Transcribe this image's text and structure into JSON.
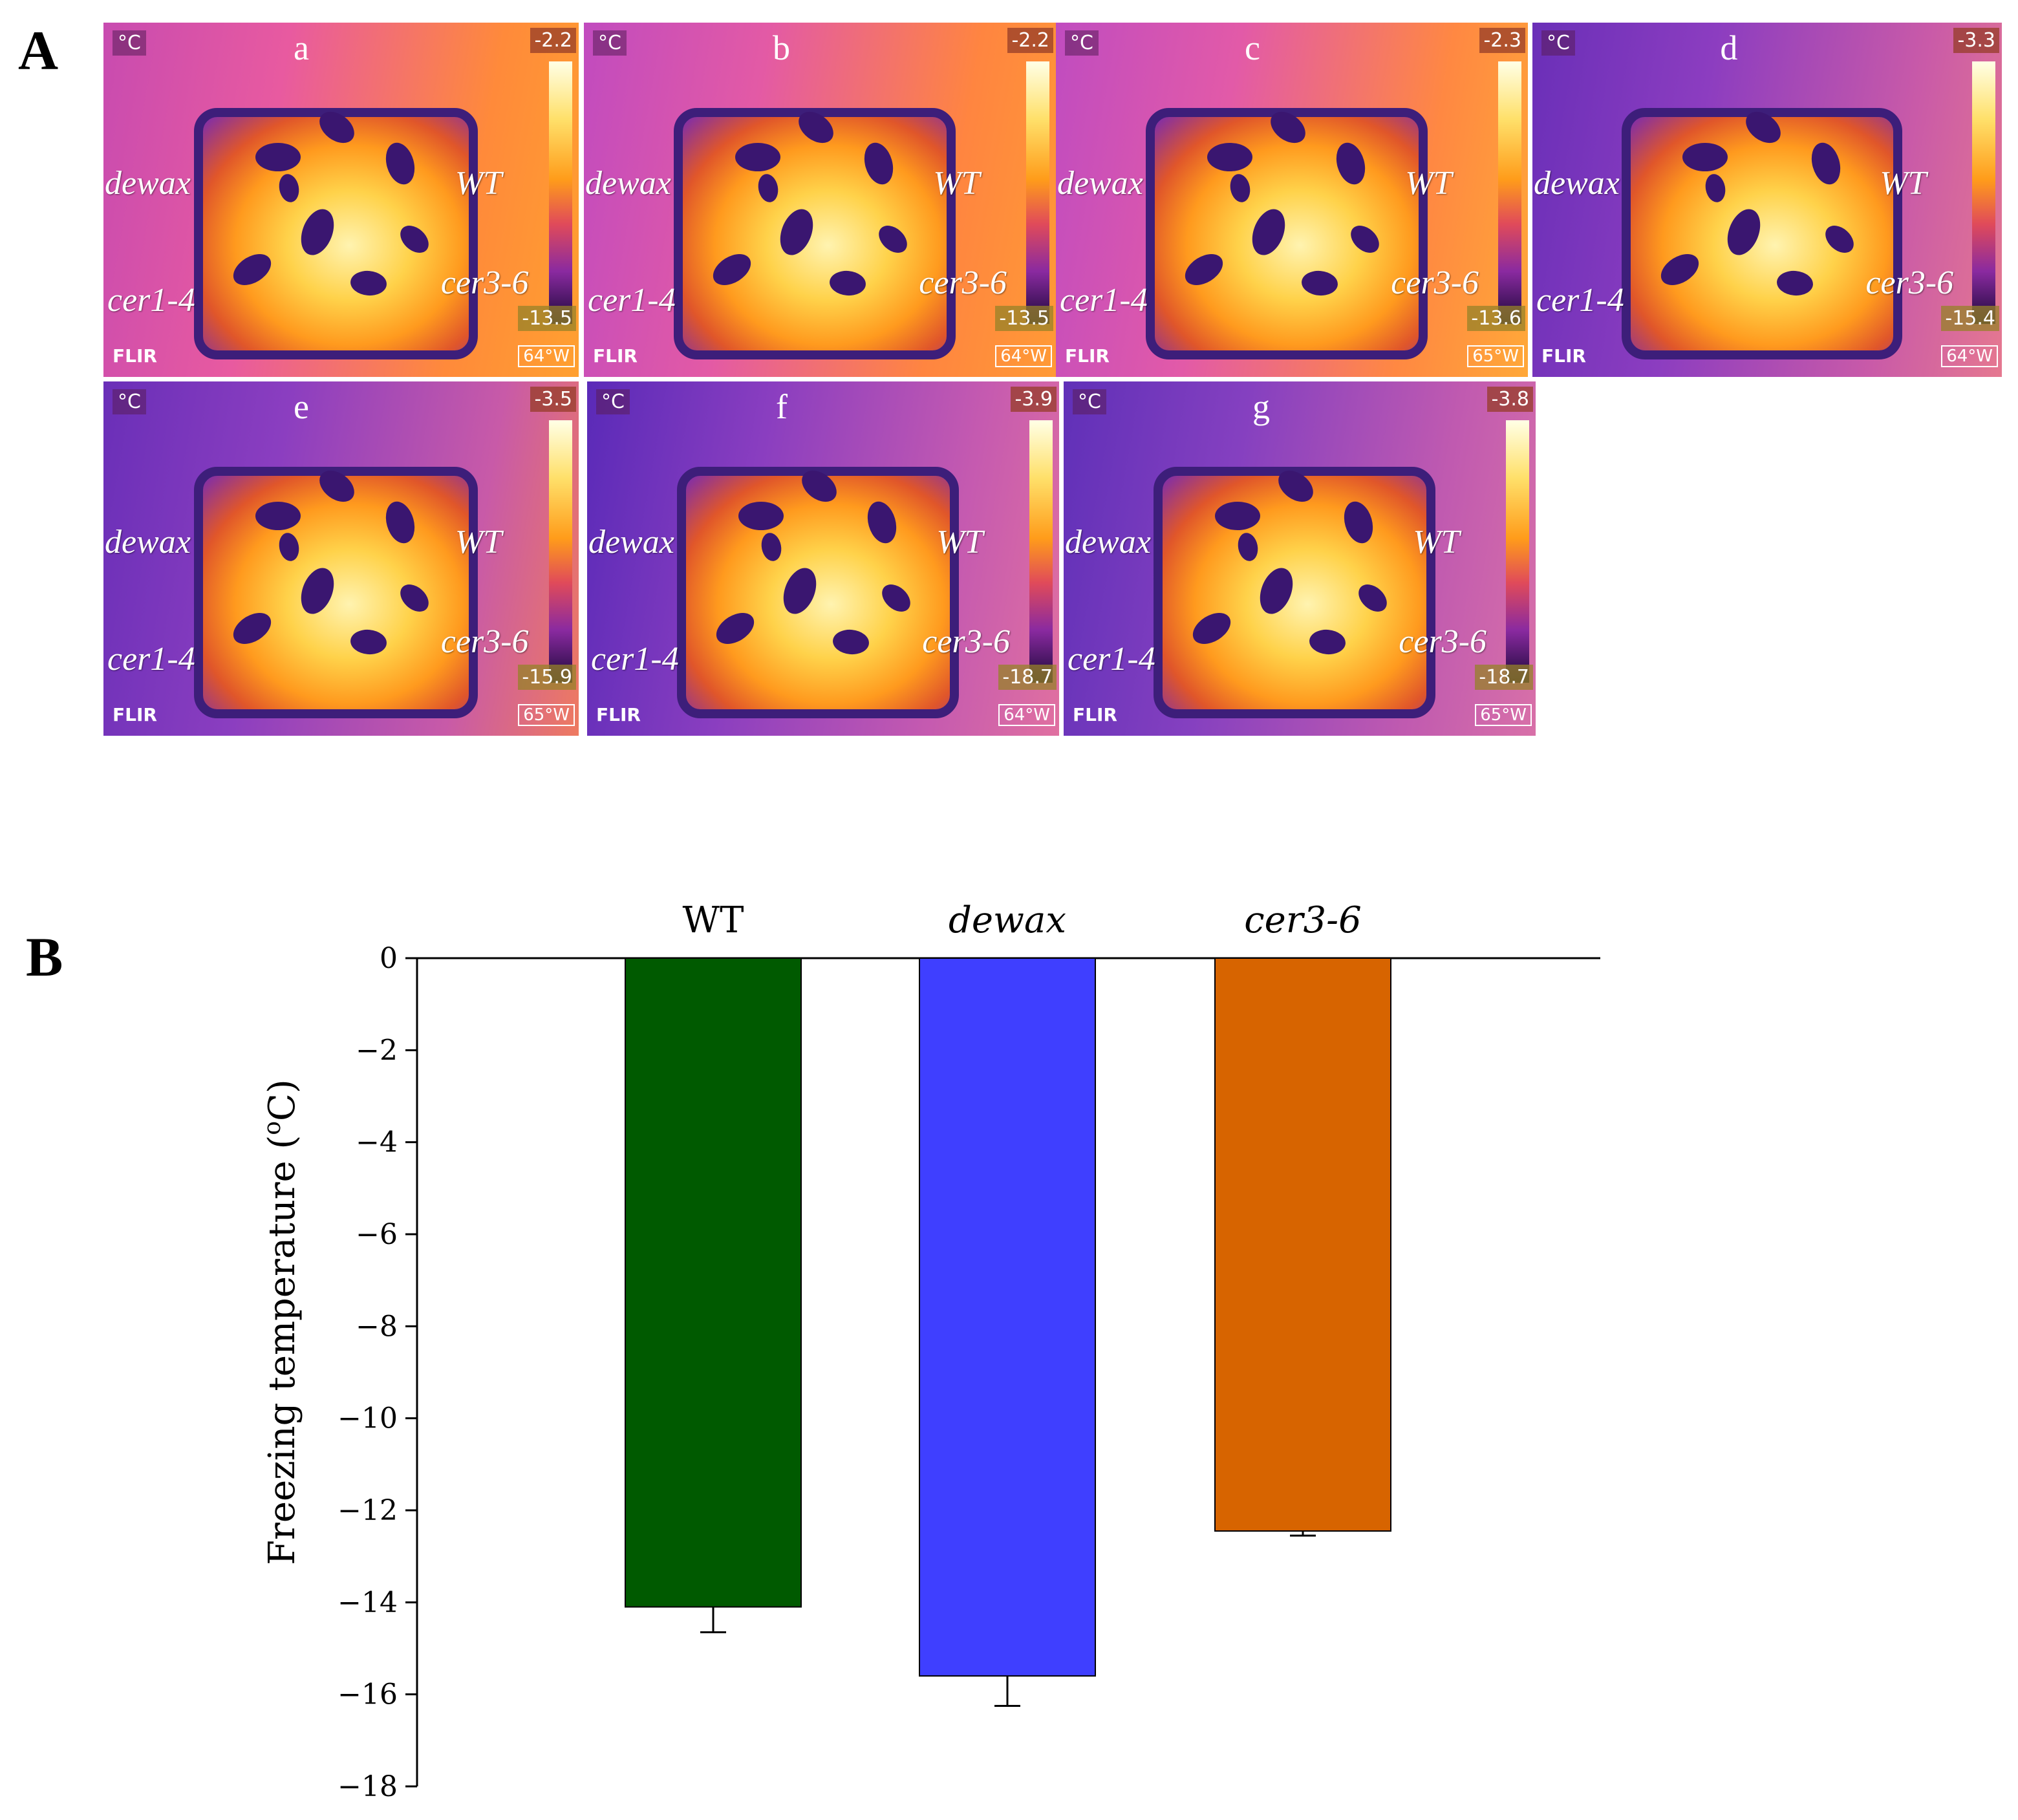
{
  "panel_labels": {
    "A": "A",
    "B": "B"
  },
  "thermal_images": [
    {
      "letter": "a",
      "unit": "°C",
      "max": "-2.2",
      "min": "-13.5",
      "logo": "FLIR",
      "lens": "64°W",
      "genotypes": {
        "top_left": "dewax",
        "top_right": "WT",
        "bottom_left": "cer1-4",
        "bottom_right": "cer3-6"
      }
    },
    {
      "letter": "b",
      "unit": "°C",
      "max": "-2.2",
      "min": "-13.5",
      "logo": "FLIR",
      "lens": "64°W",
      "genotypes": {
        "top_left": "dewax",
        "top_right": "WT",
        "bottom_left": "cer1-4",
        "bottom_right": "cer3-6"
      }
    },
    {
      "letter": "c",
      "unit": "°C",
      "max": "-2.3",
      "min": "-13.6",
      "logo": "FLIR",
      "lens": "65°W",
      "genotypes": {
        "top_left": "dewax",
        "top_right": "WT",
        "bottom_left": "cer1-4",
        "bottom_right": "cer3-6"
      }
    },
    {
      "letter": "d",
      "unit": "°C",
      "max": "-3.3",
      "min": "-15.4",
      "logo": "FLIR",
      "lens": "64°W",
      "genotypes": {
        "top_left": "dewax",
        "top_right": "WT",
        "bottom_left": "cer1-4",
        "bottom_right": "cer3-6"
      }
    },
    {
      "letter": "e",
      "unit": "°C",
      "max": "-3.5",
      "min": "-15.9",
      "logo": "FLIR",
      "lens": "65°W",
      "genotypes": {
        "top_left": "dewax",
        "top_right": "WT",
        "bottom_left": "cer1-4",
        "bottom_right": "cer3-6"
      }
    },
    {
      "letter": "f",
      "unit": "°C",
      "max": "-3.9",
      "min": "-18.7",
      "logo": "FLIR",
      "lens": "64°W",
      "genotypes": {
        "top_left": "dewax",
        "top_right": "WT",
        "bottom_left": "cer1-4",
        "bottom_right": "cer3-6"
      }
    },
    {
      "letter": "g",
      "unit": "°C",
      "max": "-3.8",
      "min": "-18.7",
      "logo": "FLIR",
      "lens": "65°W",
      "genotypes": {
        "top_left": "dewax",
        "top_right": "WT",
        "bottom_left": "cer1-4",
        "bottom_right": "cer3-6"
      }
    }
  ],
  "chart_data": {
    "type": "bar",
    "categories": [
      "WT",
      "dewax",
      "cer3-6"
    ],
    "italic_categories": [
      false,
      true,
      true
    ],
    "values": [
      -14.1,
      -15.6,
      -12.45
    ],
    "errors": [
      0.55,
      0.65,
      0.1
    ],
    "colors": [
      "#005a00",
      "#3f3fff",
      "#d76400"
    ],
    "ylabel": "Freezing temperature (",
    "ylabel_sup": "o",
    "ylabel_unit": "C)",
    "ylim": [
      -18,
      0
    ],
    "yticks": [
      0,
      -2,
      -4,
      -6,
      -8,
      -10,
      -12,
      -14,
      -16,
      -18
    ],
    "ytick_labels": [
      "0",
      "−2",
      "−4",
      "−6",
      "−8",
      "−10",
      "−12",
      "−14",
      "−16",
      "−18"
    ]
  }
}
